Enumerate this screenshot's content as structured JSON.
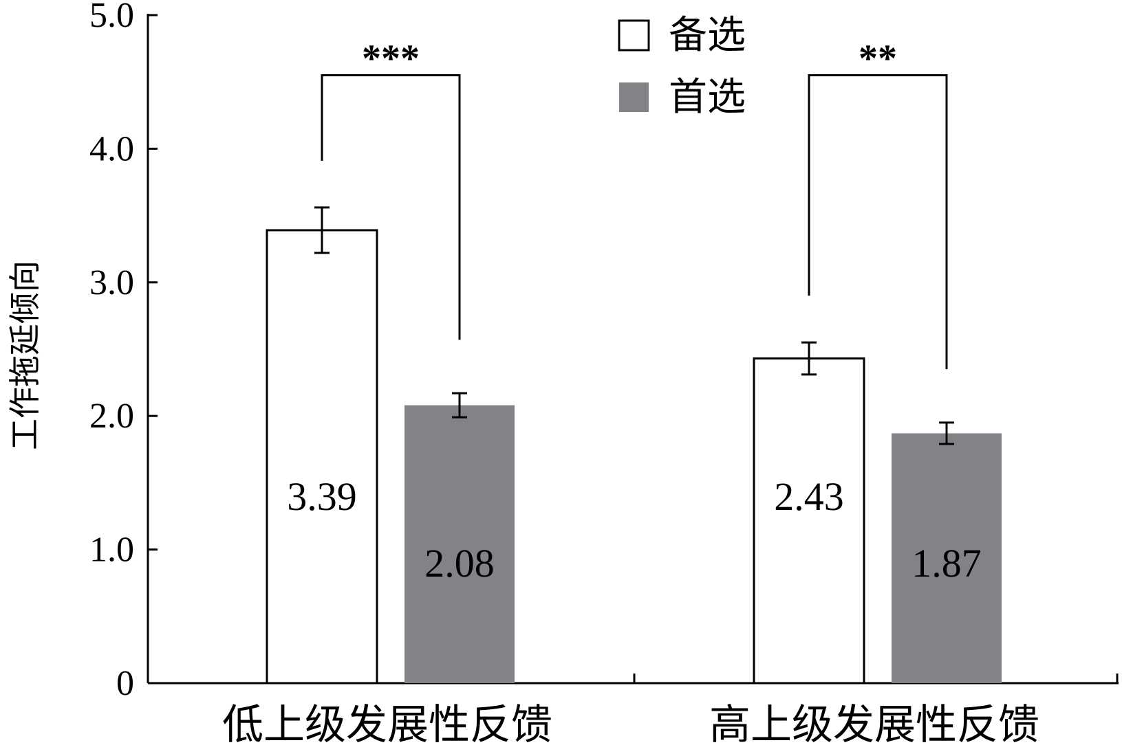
{
  "chart_data": {
    "type": "bar",
    "categories": [
      "低上级发展性反馈",
      "高上级发展性反馈"
    ],
    "series": [
      {
        "name": "备选",
        "color": "#ffffff",
        "values": [
          3.39,
          2.43
        ],
        "errors": [
          0.17,
          0.12
        ]
      },
      {
        "name": "首选",
        "color": "#838286",
        "values": [
          2.08,
          1.87
        ],
        "errors": [
          0.09,
          0.08
        ]
      }
    ],
    "data_labels": [
      "3.39",
      "2.08",
      "2.43",
      "1.87"
    ],
    "ylabel": "工作拖延倾向",
    "xlabel": "",
    "ylim": [
      0,
      5.0
    ],
    "yticks": [
      0,
      1.0,
      2.0,
      3.0,
      4.0,
      5.0
    ],
    "ytick_labels": [
      "0",
      "1.0",
      "2.0",
      "3.0",
      "4.0",
      "5.0"
    ],
    "grid": false,
    "legend_position": "top-center",
    "significance": [
      {
        "category_index": 0,
        "label": "***"
      },
      {
        "category_index": 1,
        "label": "**"
      }
    ]
  }
}
